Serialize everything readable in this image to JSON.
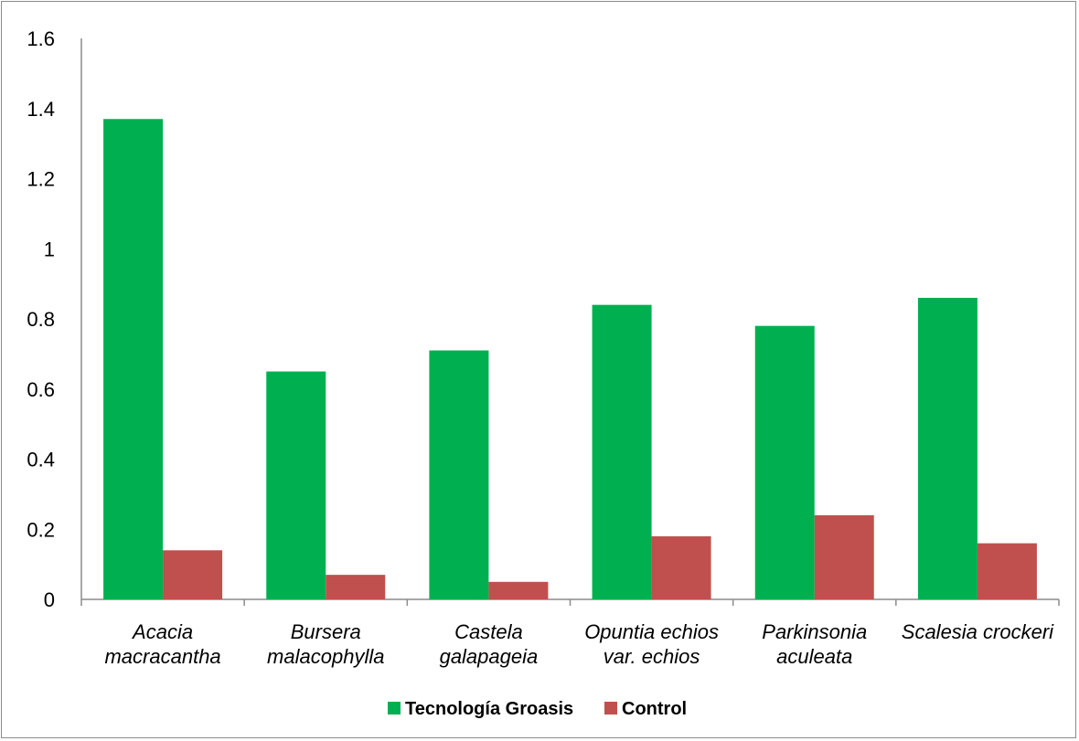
{
  "chart_data": {
    "type": "bar",
    "categories": [
      [
        "Acacia",
        "macracantha"
      ],
      [
        "Bursera",
        "malacophylla"
      ],
      [
        "Castela",
        "galapageia"
      ],
      [
        "Opuntia echios",
        "var. echios"
      ],
      [
        "Parkinsonia",
        "aculeata"
      ],
      [
        "Scalesia crockeri"
      ]
    ],
    "series": [
      {
        "name": "Tecnología Groasis",
        "color": "#00b050",
        "values": [
          1.37,
          0.65,
          0.71,
          0.84,
          0.78,
          0.86
        ]
      },
      {
        "name": "Control",
        "color": "#c0504d",
        "values": [
          0.14,
          0.07,
          0.05,
          0.18,
          0.24,
          0.16
        ]
      }
    ],
    "title": "",
    "xlabel": "",
    "ylabel": "",
    "ylim": [
      0,
      1.6
    ],
    "yticks": [
      0,
      0.2,
      0.4,
      0.6,
      0.8,
      1,
      1.2,
      1.4,
      1.6
    ],
    "ytick_labels": [
      "0",
      "0.2",
      "0.4",
      "0.6",
      "0.8",
      "1",
      "1.2",
      "1.4",
      "1.6"
    ],
    "grid": false,
    "legend": "bottom-center"
  }
}
